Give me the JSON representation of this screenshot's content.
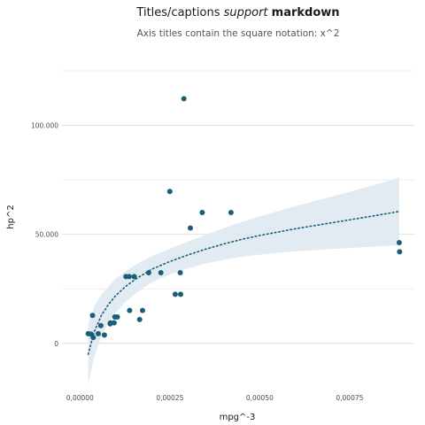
{
  "chart_data": {
    "type": "scatter",
    "title": {
      "plain": "Titles/captions ",
      "italic": "support",
      "bold": "markdown"
    },
    "subtitle": "Axis titles contain the square notation: x^2",
    "xlabel": "mpg^-3",
    "ylabel": "hp^2",
    "xlim": [
      -5e-05,
      0.00093
    ],
    "ylim": [
      -20000,
      125000
    ],
    "x_ticks": [
      0.0,
      0.00025,
      0.0005,
      0.00075
    ],
    "x_tick_labels": [
      "0,00000",
      "0,00025",
      "0,00050",
      "0,00075"
    ],
    "y_ticks": [
      0,
      50000,
      100000
    ],
    "y_tick_labels": [
      "0",
      "50.000",
      "100.000"
    ],
    "grid": true,
    "colors": {
      "points": "#1a5f7a",
      "trend": "#1a5f7a",
      "band": "#dce8ee",
      "grid": "#dddddd"
    },
    "points": [
      {
        "x": 2.3e-05,
        "y": 4400
      },
      {
        "x": 3.1e-05,
        "y": 4200
      },
      {
        "x": 3.5e-05,
        "y": 12800
      },
      {
        "x": 3.7e-05,
        "y": 2700
      },
      {
        "x": 5.1e-05,
        "y": 4400
      },
      {
        "x": 5.8e-05,
        "y": 8100
      },
      {
        "x": 6.8e-05,
        "y": 3800
      },
      {
        "x": 8.4e-05,
        "y": 8900
      },
      {
        "x": 8.5e-05,
        "y": 9400
      },
      {
        "x": 9.5e-05,
        "y": 9400
      },
      {
        "x": 9.7e-05,
        "y": 12100
      },
      {
        "x": 0.000104,
        "y": 12100
      },
      {
        "x": 0.000128,
        "y": 30600
      },
      {
        "x": 0.000137,
        "y": 30600
      },
      {
        "x": 0.000138,
        "y": 15100
      },
      {
        "x": 0.000151,
        "y": 30600
      },
      {
        "x": 0.000166,
        "y": 10900
      },
      {
        "x": 0.000174,
        "y": 15100
      },
      {
        "x": 0.000191,
        "y": 32400
      },
      {
        "x": 0.000225,
        "y": 32400
      },
      {
        "x": 0.00025,
        "y": 69700
      },
      {
        "x": 0.000265,
        "y": 22500
      },
      {
        "x": 0.000279,
        "y": 32400
      },
      {
        "x": 0.00028,
        "y": 22500
      },
      {
        "x": 0.000289,
        "y": 112200
      },
      {
        "x": 0.000307,
        "y": 52900
      },
      {
        "x": 0.00034,
        "y": 60000
      },
      {
        "x": 0.00042,
        "y": 60000
      },
      {
        "x": 0.000888,
        "y": 46200
      },
      {
        "x": 0.000889,
        "y": 42000
      }
    ],
    "trend_line": {
      "style": "dotted",
      "x": [
        2.3e-05,
        4e-05,
        6e-05,
        8e-05,
        0.0001,
        0.00013,
        0.00016,
        0.0002,
        0.00025,
        0.0003,
        0.00035,
        0.0004,
        0.00045,
        0.0005,
        0.0006,
        0.0007,
        0.0008,
        0.000888
      ],
      "y": [
        -5000,
        5500,
        13000,
        18000,
        22000,
        26500,
        30000,
        34000,
        37500,
        40500,
        43200,
        45600,
        47700,
        49500,
        52600,
        55300,
        58000,
        60500
      ],
      "ci_lower": [
        -19000,
        -6000,
        3500,
        9800,
        14300,
        19500,
        23500,
        28000,
        31600,
        34400,
        36600,
        38300,
        39700,
        40700,
        42200,
        43300,
        44200,
        45000
      ],
      "ci_upper": [
        9000,
        17000,
        22500,
        26200,
        29700,
        33500,
        36500,
        40000,
        43400,
        46600,
        49800,
        52900,
        55700,
        58300,
        63000,
        67300,
        71800,
        76000
      ]
    }
  }
}
